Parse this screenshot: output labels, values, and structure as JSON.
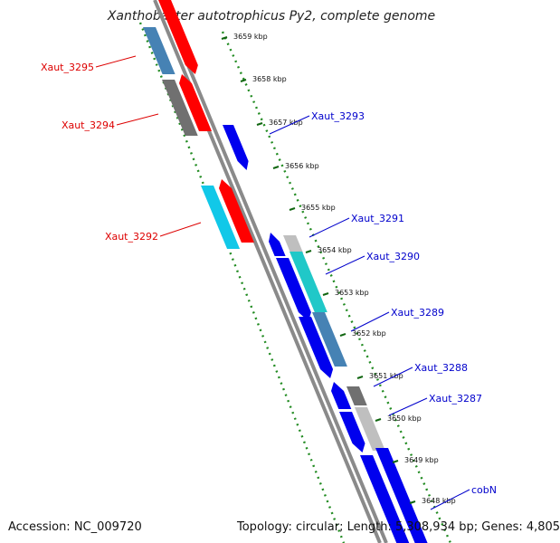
{
  "title": "Xanthobacter autotrophicus Py2, complete genome",
  "footer": {
    "accession": "Accession: NC_009720",
    "summary": "Topology: circular; Length: 5,308,934 bp; Genes: 4,805"
  },
  "ticks": [
    {
      "label": "3659 kbp"
    },
    {
      "label": "3658 kbp"
    },
    {
      "label": "3657 kbp"
    },
    {
      "label": "3656 kbp"
    },
    {
      "label": "3655 kbp"
    },
    {
      "label": "3654 kbp"
    },
    {
      "label": "3653 kbp"
    },
    {
      "label": "3652 kbp"
    },
    {
      "label": "3651 kbp"
    },
    {
      "label": "3650 kbp"
    },
    {
      "label": "3649 kbp"
    },
    {
      "label": "3648 kbp"
    }
  ],
  "colors": {
    "red": "#ff0000",
    "blue": "#0000ee",
    "steel": "#4682b4",
    "gray": "#707070",
    "cyan": "#11c8e8",
    "teal": "#20c8c8",
    "light": "#bfbfbf",
    "backbone": "#8a8a8a",
    "dots": "#228b22",
    "label_left": "#dd0000",
    "label_right": "#0000cc"
  },
  "genes_left": [
    {
      "label": "Xaut_3295"
    },
    {
      "label": "Xaut_3294"
    },
    {
      "label": "Xaut_3292"
    }
  ],
  "genes_right": [
    {
      "label": "Xaut_3293"
    },
    {
      "label": "Xaut_3291"
    },
    {
      "label": "Xaut_3290"
    },
    {
      "label": "Xaut_3289"
    },
    {
      "label": "Xaut_3288"
    },
    {
      "label": "Xaut_3287"
    },
    {
      "label": "cobN"
    }
  ]
}
